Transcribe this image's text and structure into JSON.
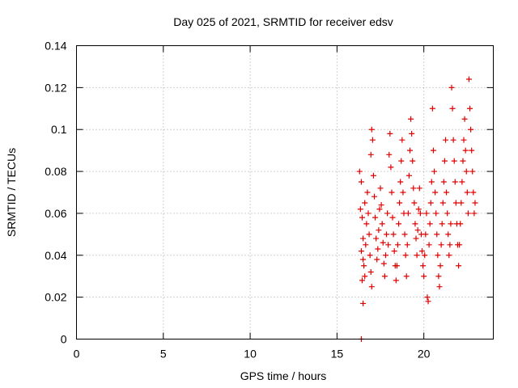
{
  "chart_data": {
    "type": "scatter",
    "title": "Day 025 of 2021, SRMTID for receiver edsv",
    "xlabel": "GPS time / hours",
    "ylabel": "SRMTID / TECUs",
    "xlim": [
      0,
      24
    ],
    "ylim": [
      0,
      0.14
    ],
    "xticks": [
      0,
      5,
      10,
      15,
      20
    ],
    "yticks": [
      0,
      0.02,
      0.04,
      0.06,
      0.08,
      0.1,
      0.12,
      0.14
    ],
    "xtick_labels": [
      "0",
      "5",
      "10",
      "15",
      "20"
    ],
    "ytick_labels": [
      "0",
      "0.02",
      "0.04",
      "0.06",
      "0.08",
      "0.1",
      "0.12",
      "0.14"
    ],
    "grid": true,
    "marker": "+",
    "marker_color": "#e00000",
    "series": [
      {
        "name": "SRMTID",
        "points": [
          [
            16.4,
            0.0
          ],
          [
            16.5,
            0.017
          ],
          [
            16.3,
            0.08
          ],
          [
            16.4,
            0.075
          ],
          [
            16.35,
            0.062
          ],
          [
            16.45,
            0.058
          ],
          [
            16.5,
            0.048
          ],
          [
            16.4,
            0.042
          ],
          [
            16.55,
            0.035
          ],
          [
            16.45,
            0.028
          ],
          [
            16.6,
            0.03
          ],
          [
            16.5,
            0.038
          ],
          [
            16.65,
            0.045
          ],
          [
            16.7,
            0.055
          ],
          [
            16.6,
            0.065
          ],
          [
            16.75,
            0.07
          ],
          [
            16.8,
            0.06
          ],
          [
            16.85,
            0.05
          ],
          [
            16.9,
            0.04
          ],
          [
            16.95,
            0.032
          ],
          [
            17.0,
            0.025
          ],
          [
            17.0,
            0.1
          ],
          [
            17.05,
            0.095
          ],
          [
            16.95,
            0.088
          ],
          [
            17.1,
            0.078
          ],
          [
            17.15,
            0.068
          ],
          [
            17.2,
            0.058
          ],
          [
            17.25,
            0.048
          ],
          [
            17.3,
            0.038
          ],
          [
            17.35,
            0.043
          ],
          [
            17.4,
            0.052
          ],
          [
            17.45,
            0.062
          ],
          [
            17.5,
            0.072
          ],
          [
            17.55,
            0.064
          ],
          [
            17.6,
            0.055
          ],
          [
            17.65,
            0.046
          ],
          [
            17.7,
            0.036
          ],
          [
            17.75,
            0.03
          ],
          [
            17.8,
            0.04
          ],
          [
            17.85,
            0.05
          ],
          [
            17.9,
            0.06
          ],
          [
            17.95,
            0.045
          ],
          [
            18.0,
            0.088
          ],
          [
            18.05,
            0.098
          ],
          [
            18.1,
            0.082
          ],
          [
            18.15,
            0.07
          ],
          [
            18.2,
            0.058
          ],
          [
            18.25,
            0.05
          ],
          [
            18.3,
            0.042
          ],
          [
            18.35,
            0.035
          ],
          [
            18.4,
            0.028
          ],
          [
            18.45,
            0.035
          ],
          [
            18.5,
            0.045
          ],
          [
            18.55,
            0.055
          ],
          [
            18.6,
            0.065
          ],
          [
            18.65,
            0.075
          ],
          [
            18.7,
            0.085
          ],
          [
            18.75,
            0.095
          ],
          [
            18.8,
            0.07
          ],
          [
            18.85,
            0.06
          ],
          [
            18.9,
            0.05
          ],
          [
            18.95,
            0.04
          ],
          [
            19.0,
            0.03
          ],
          [
            19.05,
            0.045
          ],
          [
            19.1,
            0.06
          ],
          [
            19.15,
            0.078
          ],
          [
            19.2,
            0.09
          ],
          [
            19.25,
            0.105
          ],
          [
            19.3,
            0.098
          ],
          [
            19.35,
            0.085
          ],
          [
            19.4,
            0.072
          ],
          [
            19.45,
            0.065
          ],
          [
            19.5,
            0.055
          ],
          [
            19.55,
            0.048
          ],
          [
            19.6,
            0.04
          ],
          [
            19.65,
            0.052
          ],
          [
            19.7,
            0.062
          ],
          [
            19.75,
            0.072
          ],
          [
            19.8,
            0.06
          ],
          [
            19.85,
            0.05
          ],
          [
            19.9,
            0.042
          ],
          [
            19.95,
            0.035
          ],
          [
            20.0,
            0.03
          ],
          [
            20.05,
            0.04
          ],
          [
            20.1,
            0.05
          ],
          [
            20.15,
            0.06
          ],
          [
            20.2,
            0.02
          ],
          [
            20.25,
            0.018
          ],
          [
            20.3,
            0.045
          ],
          [
            20.35,
            0.055
          ],
          [
            20.4,
            0.065
          ],
          [
            20.45,
            0.075
          ],
          [
            20.5,
            0.11
          ],
          [
            20.55,
            0.09
          ],
          [
            20.6,
            0.08
          ],
          [
            20.65,
            0.07
          ],
          [
            20.7,
            0.06
          ],
          [
            20.75,
            0.05
          ],
          [
            20.8,
            0.04
          ],
          [
            20.85,
            0.03
          ],
          [
            20.9,
            0.025
          ],
          [
            20.95,
            0.035
          ],
          [
            21.0,
            0.045
          ],
          [
            21.05,
            0.055
          ],
          [
            21.1,
            0.065
          ],
          [
            21.15,
            0.075
          ],
          [
            21.2,
            0.085
          ],
          [
            21.25,
            0.095
          ],
          [
            21.3,
            0.07
          ],
          [
            21.35,
            0.06
          ],
          [
            21.4,
            0.05
          ],
          [
            21.45,
            0.04
          ],
          [
            21.5,
            0.045
          ],
          [
            21.55,
            0.055
          ],
          [
            21.6,
            0.12
          ],
          [
            21.65,
            0.11
          ],
          [
            21.7,
            0.095
          ],
          [
            21.75,
            0.085
          ],
          [
            21.8,
            0.075
          ],
          [
            21.85,
            0.065
          ],
          [
            21.9,
            0.055
          ],
          [
            21.95,
            0.045
          ],
          [
            22.0,
            0.035
          ],
          [
            22.05,
            0.045
          ],
          [
            22.1,
            0.055
          ],
          [
            22.15,
            0.065
          ],
          [
            22.2,
            0.075
          ],
          [
            22.25,
            0.085
          ],
          [
            22.3,
            0.095
          ],
          [
            22.35,
            0.105
          ],
          [
            22.4,
            0.09
          ],
          [
            22.45,
            0.08
          ],
          [
            22.5,
            0.07
          ],
          [
            22.55,
            0.06
          ],
          [
            22.6,
            0.124
          ],
          [
            22.65,
            0.11
          ],
          [
            22.7,
            0.1
          ],
          [
            22.75,
            0.09
          ],
          [
            22.8,
            0.08
          ],
          [
            22.85,
            0.07
          ],
          [
            22.9,
            0.06
          ],
          [
            22.95,
            0.065
          ]
        ]
      }
    ]
  }
}
